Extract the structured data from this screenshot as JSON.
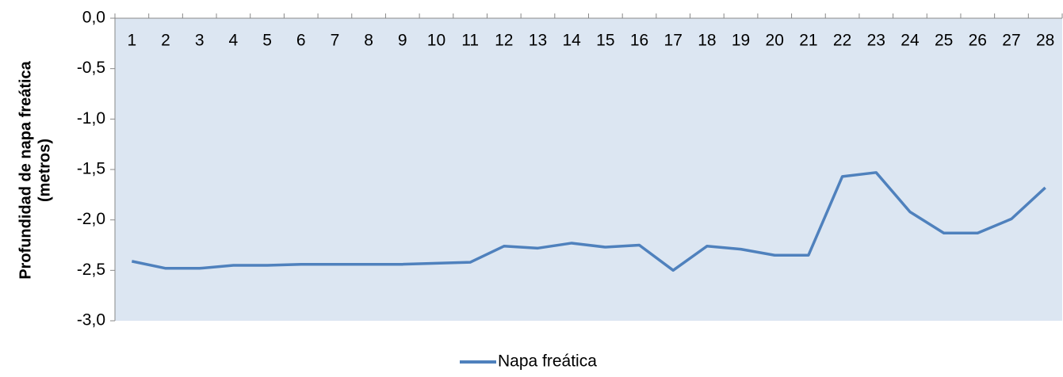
{
  "chart_data": {
    "type": "line",
    "y_label": [
      "Profundidad de napa freática",
      "(metros)"
    ],
    "categories": [
      "1",
      "2",
      "3",
      "4",
      "5",
      "6",
      "7",
      "8",
      "9",
      "10",
      "11",
      "12",
      "13",
      "14",
      "15",
      "16",
      "17",
      "18",
      "19",
      "20",
      "21",
      "22",
      "23",
      "24",
      "25",
      "26",
      "27",
      "28"
    ],
    "series": [
      {
        "name": "Napa freática",
        "color": "#4f81bd",
        "values": [
          -2.41,
          -2.48,
          -2.48,
          -2.45,
          -2.45,
          -2.44,
          -2.44,
          -2.44,
          -2.44,
          -2.43,
          -2.42,
          -2.26,
          -2.28,
          -2.23,
          -2.27,
          -2.25,
          -2.5,
          -2.26,
          -2.29,
          -2.35,
          -2.35,
          -1.57,
          -1.53,
          -1.92,
          -2.13,
          -2.13,
          -1.99,
          -1.68
        ]
      }
    ],
    "ylim": [
      -3.0,
      0.0
    ],
    "yticks": [
      {
        "value": 0,
        "label": "0,0"
      },
      {
        "value": -0.5,
        "label": "-0,5"
      },
      {
        "value": -1.0,
        "label": "-1,0"
      },
      {
        "value": -1.5,
        "label": "-1,5"
      },
      {
        "value": -2.0,
        "label": "-2,0"
      },
      {
        "value": -2.5,
        "label": "-2,5"
      },
      {
        "value": -3.0,
        "label": "-3,0"
      }
    ],
    "plot_background": "#dce6f2",
    "legend": "bottom"
  }
}
